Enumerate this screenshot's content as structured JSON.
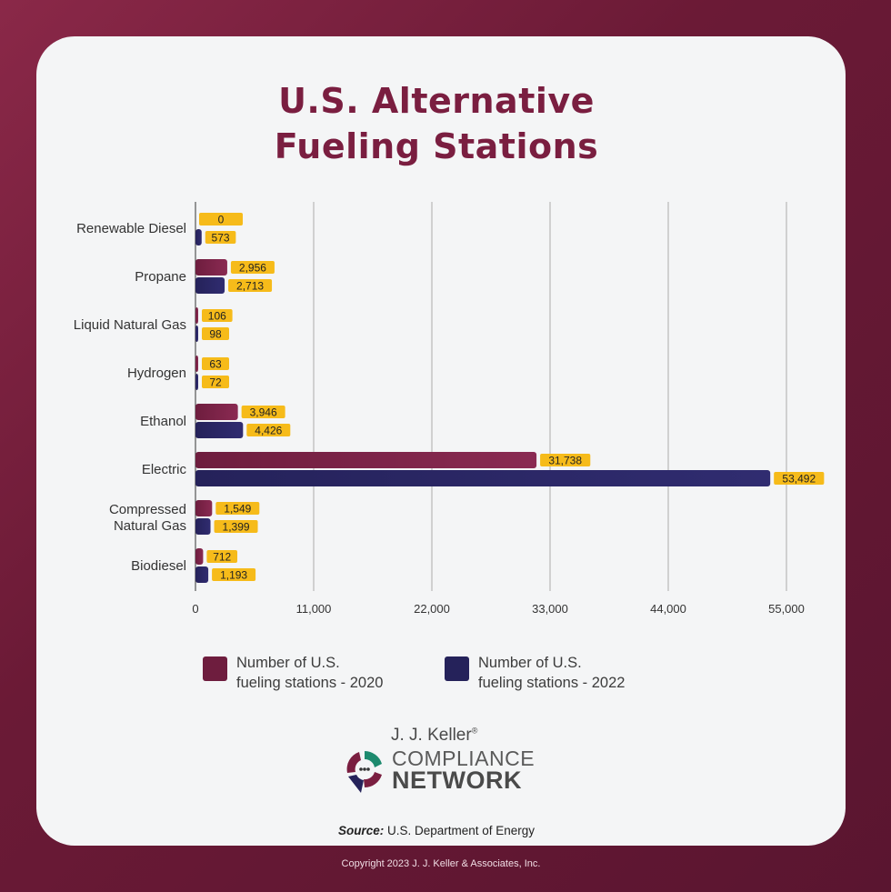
{
  "title_line1": "U.S. Alternative",
  "title_line2": "Fueling Stations",
  "chart_data": {
    "type": "bar",
    "orientation": "horizontal",
    "categories": [
      "Renewable Diesel",
      "Propane",
      "Liquid Natural Gas",
      "Hydrogen",
      "Ethanol",
      "Electric",
      "Compressed Natural Gas",
      "Biodiesel"
    ],
    "series": [
      {
        "name": "Number of U.S. fueling stations - 2020",
        "color": "#6e1d3e",
        "values": [
          0,
          2956,
          106,
          63,
          3946,
          31738,
          1549,
          712
        ],
        "labels": [
          "0",
          "2,956",
          "106",
          "63",
          "3,946",
          "31,738",
          "1,549",
          "712"
        ]
      },
      {
        "name": "Number of U.S. fueling stations - 2022",
        "color": "#25225a",
        "values": [
          573,
          2713,
          98,
          72,
          4426,
          53492,
          1399,
          1193
        ],
        "labels": [
          "573",
          "2,713",
          "98",
          "72",
          "4,426",
          "53,492",
          "1,399",
          "1,193"
        ]
      }
    ],
    "category_labels": [
      [
        "Renewable Diesel"
      ],
      [
        "Propane"
      ],
      [
        "Liquid Natural Gas"
      ],
      [
        "Hydrogen"
      ],
      [
        "Ethanol"
      ],
      [
        "Electric"
      ],
      [
        "Compressed",
        "Natural Gas"
      ],
      [
        "Biodiesel"
      ]
    ],
    "xlim": [
      0,
      55000
    ],
    "xticks": [
      0,
      11000,
      22000,
      33000,
      44000,
      55000
    ],
    "xtick_labels": [
      "0",
      "11,000",
      "22,000",
      "33,000",
      "44,000",
      "55,000"
    ],
    "grid": "vertical",
    "label_color": "#f6bb1a"
  },
  "legend": [
    {
      "line1": "Number of U.S.",
      "line2": "fueling stations - 2020",
      "color": "#6e1d3e"
    },
    {
      "line1": "Number of U.S.",
      "line2": "fueling stations - 2022",
      "color": "#25225a"
    }
  ],
  "logo": {
    "line1": "J. J. Keller",
    "reg": "®",
    "line2": "COMPLIANCE",
    "line3": "NETWORK"
  },
  "source_label": "Source:",
  "source_text": "U.S. Department of Energy",
  "copyright": "Copyright 2023 J. J. Keller & Associates, Inc."
}
